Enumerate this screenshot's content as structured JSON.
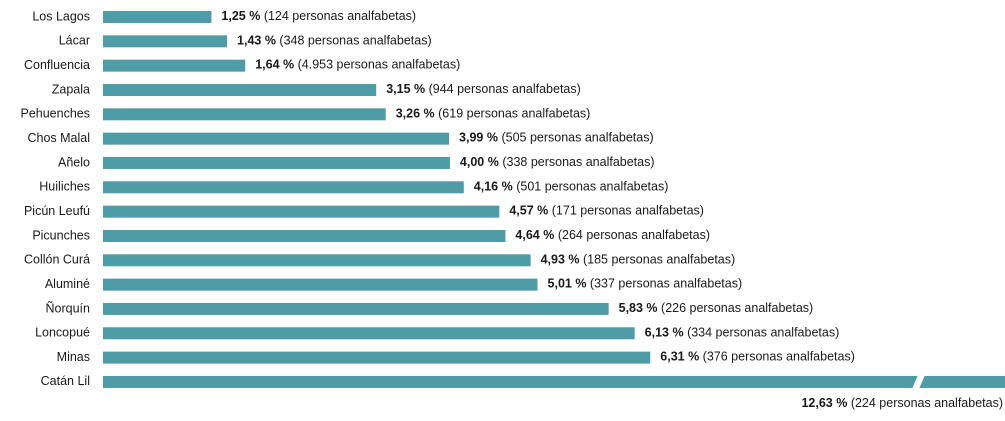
{
  "chart_data": {
    "type": "hbar",
    "categories": [
      "Los Lagos",
      "Lácar",
      "Confluencia",
      "Zapala",
      "Pehuenches",
      "Chos Malal",
      "Añelo",
      "Huiliches",
      "Picún Leufú",
      "Picunches",
      "Collón Curá",
      "Aluminé",
      "Ñorquín",
      "Loncopué",
      "Minas",
      "Catán Lil"
    ],
    "values": [
      1.25,
      1.43,
      1.64,
      3.15,
      3.26,
      3.99,
      4.0,
      4.16,
      4.57,
      4.64,
      4.93,
      5.01,
      5.83,
      6.13,
      6.31,
      12.63
    ],
    "value_labels": [
      "1,25 %",
      "1,43 %",
      "1,64 %",
      "3,15 %",
      "3,26 %",
      "3,99 %",
      "4,00 %",
      "4,16 %",
      "4,57 %",
      "4,64 %",
      "4,93 %",
      "5,01 %",
      "5,83 %",
      "6,13 %",
      "6,31 %",
      "12,63 %"
    ],
    "details": [
      "(124 personas analfabetas)",
      "(348 personas analfabetas)",
      "(4.953 personas analfabetas)",
      "(944 personas analfabetas)",
      "(619  personas analfabetas)",
      "(505 personas analfabetas)",
      "(338  personas analfabetas)",
      "(501 personas analfabetas)",
      "(171 personas analfabetas)",
      "(264 personas analfabetas)",
      "(185 personas analfabetas)",
      "(337  personas analfabetas)",
      "(226 personas analfabetas)",
      "(334 personas analfabetas)",
      "(376 personas analfabetas)",
      "(224 personas analfabetas)"
    ],
    "color": "#4f9ca7",
    "xlim": [
      0,
      10.4
    ]
  }
}
